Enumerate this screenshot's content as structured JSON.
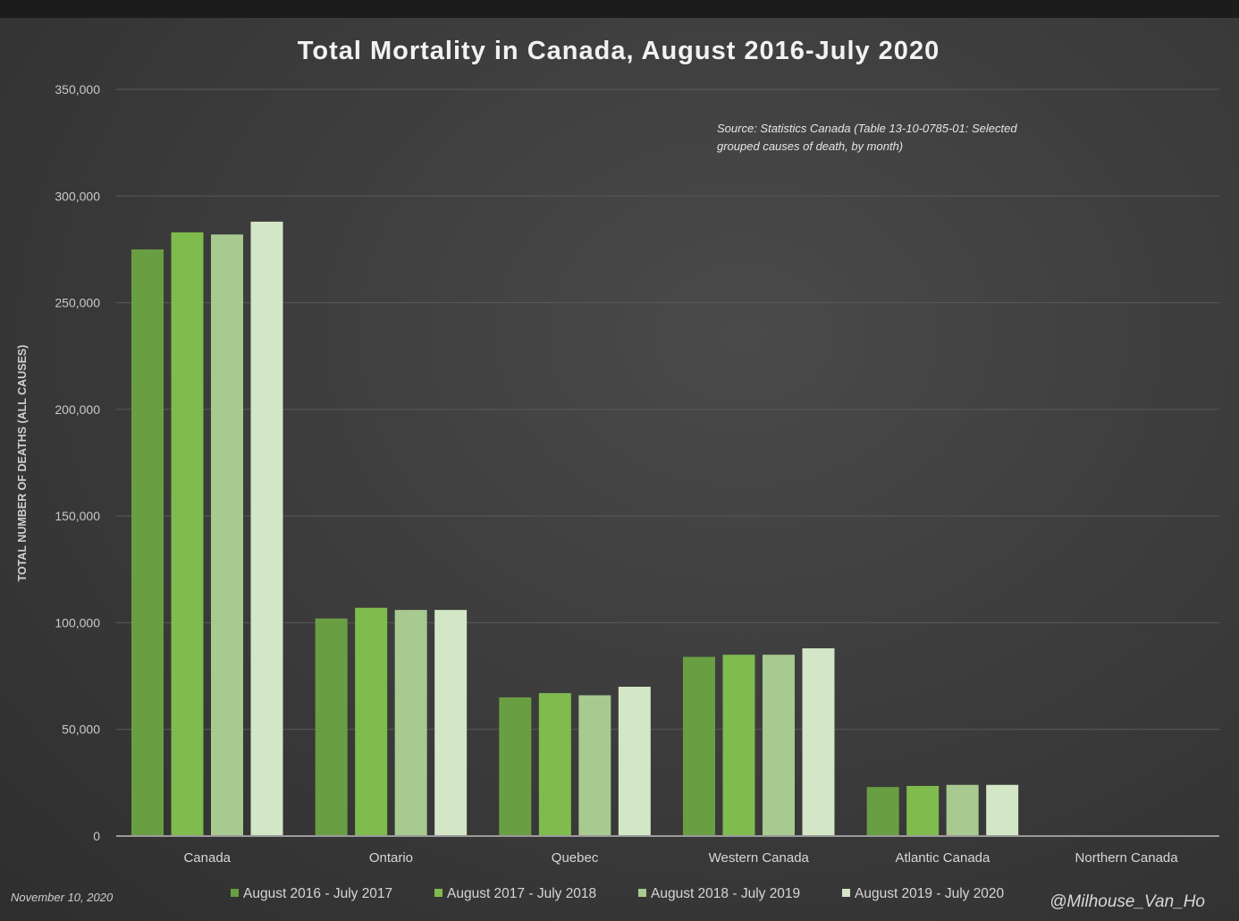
{
  "chart_data": {
    "type": "bar",
    "title": "Total Mortality in Canada, August 2016-July 2020",
    "xlabel": "",
    "ylabel": "TOTAL NUMBER OF DEATHS (ALL CAUSES)",
    "ylim": [
      0,
      350000
    ],
    "yticks": [
      0,
      50000,
      100000,
      150000,
      200000,
      250000,
      300000,
      350000
    ],
    "ytick_labels": [
      "0",
      "50,000",
      "100,000",
      "150,000",
      "200,000",
      "250,000",
      "300,000",
      "350,000"
    ],
    "grid": true,
    "categories": [
      "Canada",
      "Ontario",
      "Quebec",
      "Western Canada",
      "Atlantic Canada",
      "Northern Canada"
    ],
    "series": [
      {
        "name": "August 2016 - July 2017",
        "color": "#6a9e43",
        "values": [
          275000,
          102000,
          65000,
          84000,
          23000,
          250
        ]
      },
      {
        "name": "August 2017 - July 2018",
        "color": "#80bb4d",
        "values": [
          283000,
          107000,
          67000,
          85000,
          23500,
          250
        ]
      },
      {
        "name": "August 2018 - July 2019",
        "color": "#a8c98f",
        "values": [
          282000,
          106000,
          66000,
          85000,
          24000,
          250
        ]
      },
      {
        "name": "August 2019 - July 2020",
        "color": "#d3e6c6",
        "values": [
          288000,
          106000,
          70000,
          88000,
          24000,
          250
        ]
      }
    ],
    "legend_position": "bottom",
    "annotations": {
      "source_line1": "Source: Statistics Canada (Table 13-10-0785-01: Selected",
      "source_line2": "grouped causes of death, by month)",
      "date": "November 10, 2020",
      "credit": "@Milhouse_Van_Ho"
    }
  }
}
